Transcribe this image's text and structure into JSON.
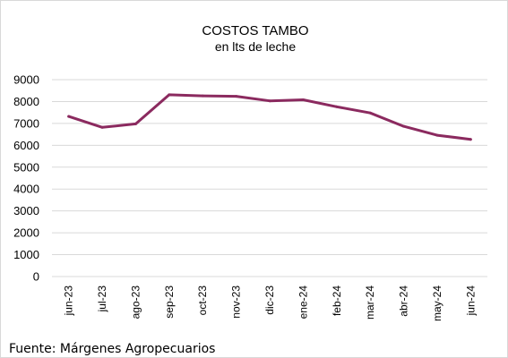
{
  "chart_data": {
    "type": "line",
    "title": "COSTOS TAMBO",
    "subtitle": "en lts de leche",
    "xlabel": "",
    "ylabel": "",
    "ylim": [
      0,
      9000
    ],
    "yticks": [
      0,
      1000,
      2000,
      3000,
      4000,
      5000,
      6000,
      7000,
      8000,
      9000
    ],
    "categories": [
      "jun-23",
      "jul-23",
      "ago-23",
      "sep-23",
      "oct-23",
      "nov-23",
      "dic-23",
      "ene-24",
      "feb-24",
      "mar-24",
      "abr-24",
      "may-24",
      "jun-24"
    ],
    "series": [
      {
        "values": [
          7320,
          6820,
          6980,
          8310,
          8260,
          8240,
          8030,
          8080,
          7760,
          7480,
          6870,
          6460,
          6270
        ],
        "color": "#8b2a5f"
      }
    ],
    "grid": true,
    "legend": "none"
  },
  "source": "Fuente: Márgenes Agropecuarios"
}
